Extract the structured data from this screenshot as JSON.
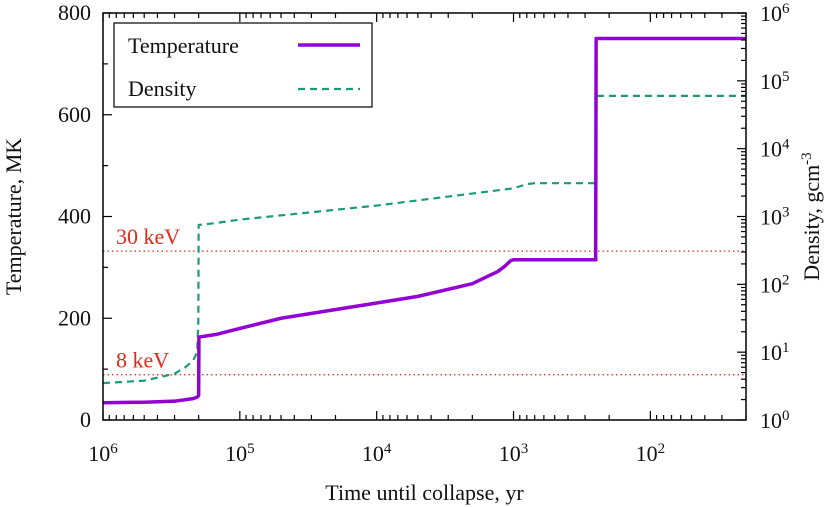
{
  "chart_data": {
    "type": "line",
    "xlabel": "Time until collapse, yr",
    "ylabel": "Temperature, MK",
    "y2label": "Density, gcm",
    "y2label_superscript": "-3",
    "x_scale": "log-reversed",
    "xlim": [
      1000000,
      20
    ],
    "ylim": [
      0,
      800
    ],
    "y2_scale": "log",
    "y2lim": [
      1,
      1000000
    ],
    "x_ticks": [
      {
        "value": 1000000,
        "base": "10",
        "exp": "6"
      },
      {
        "value": 100000,
        "base": "10",
        "exp": "5"
      },
      {
        "value": 10000,
        "base": "10",
        "exp": "4"
      },
      {
        "value": 1000,
        "base": "10",
        "exp": "3"
      },
      {
        "value": 100,
        "base": "10",
        "exp": "2"
      }
    ],
    "y_ticks": [
      0,
      200,
      400,
      600,
      800
    ],
    "y2_ticks": [
      {
        "value": 1,
        "base": "10",
        "exp": "0"
      },
      {
        "value": 10,
        "base": "10",
        "exp": "1"
      },
      {
        "value": 100,
        "base": "10",
        "exp": "2"
      },
      {
        "value": 1000,
        "base": "10",
        "exp": "3"
      },
      {
        "value": 10000,
        "base": "10",
        "exp": "4"
      },
      {
        "value": 100000,
        "base": "10",
        "exp": "5"
      },
      {
        "value": 1000000,
        "base": "10",
        "exp": "6"
      }
    ],
    "grid": false,
    "legend_position": "top-left",
    "series": [
      {
        "name": "Temperature",
        "axis": "left",
        "color": "#9400d3",
        "style": "solid",
        "x": [
          1000000,
          500000,
          300000,
          220000,
          205000,
          200000,
          199000,
          150000,
          100000,
          50000,
          10000,
          5000,
          2000,
          1300,
          1150,
          1050,
          1000,
          500,
          250,
          251,
          249,
          200,
          100,
          20
        ],
        "y": [
          34,
          35,
          37,
          42,
          45,
          48,
          163,
          168,
          180,
          200,
          230,
          243,
          268,
          292,
          303,
          313,
          315,
          315,
          315,
          316,
          750,
          750,
          750,
          750
        ]
      },
      {
        "name": "Density",
        "axis": "right",
        "color": "#1a9a79",
        "style": "dashed",
        "x": [
          1000000,
          500000,
          300000,
          250000,
          220000,
          205000,
          201000,
          200000,
          150000,
          100000,
          10000,
          1000,
          800,
          700,
          400,
          250,
          249,
          200,
          100,
          20
        ],
        "y": [
          3.5,
          3.8,
          4.8,
          6.0,
          7.5,
          10,
          30,
          750,
          800,
          900,
          1450,
          2600,
          3000,
          3100,
          3100,
          3100,
          60000,
          60000,
          60000,
          60000
        ]
      }
    ],
    "reference_lines": [
      {
        "label": "30 keV",
        "y": 332,
        "color": "#e02a1a"
      },
      {
        "label": "8 keV",
        "y": 89,
        "color": "#e02a1a"
      }
    ]
  }
}
